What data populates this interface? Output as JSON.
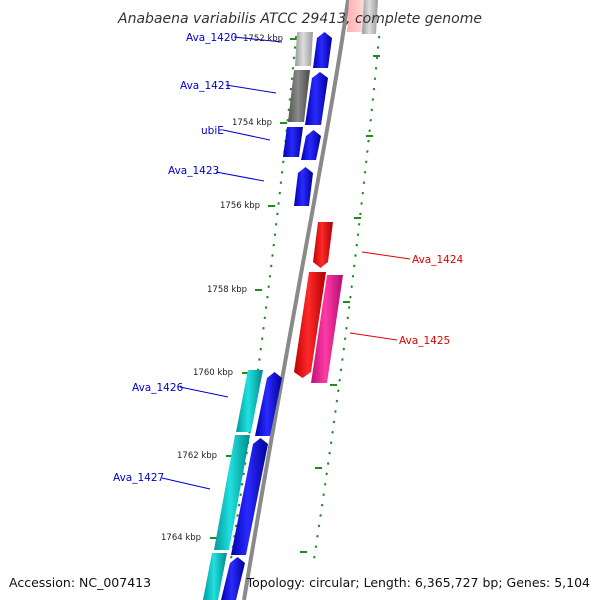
{
  "title": "Anabaena variabilis ATCC 29413, complete genome",
  "footer": {
    "accession": "Accession: NC_007413",
    "summary": "Topology: circular; Length: 6,365,727 bp; Genes: 5,104"
  },
  "colors": {
    "backbone": "#8a8a8a",
    "tick": "#228b22",
    "label_forward": "#0000cc",
    "label_reverse": "#dd0000",
    "gene_forward": "#0000ee",
    "gene_reverse": "#ff0000",
    "gene_reverse_alt": "#ff1493",
    "cds_cyan": "#00cccc",
    "cds_gray": "#777777",
    "cds_lightgray": "#bbbbbb"
  },
  "kbp_labels": [
    "1752 kbp",
    "1754 kbp",
    "1756 kbp",
    "1758 kbp",
    "1760 kbp",
    "1762 kbp",
    "1764 kbp"
  ],
  "gene_labels": [
    "Ava_1420",
    "Ava_1421",
    "ubiE",
    "Ava_1423",
    "Ava_1424",
    "Ava_1425",
    "Ava_1426",
    "Ava_1427"
  ]
}
